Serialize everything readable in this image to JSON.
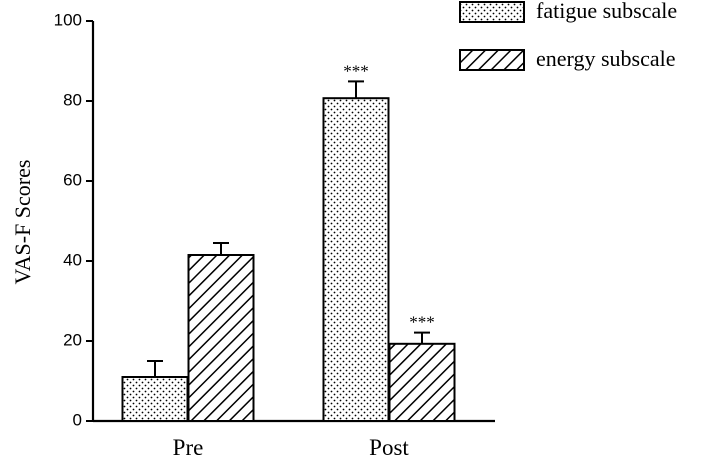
{
  "chart_data": {
    "type": "bar",
    "title": "",
    "xlabel": "",
    "ylabel": "VAS-F  Scores",
    "categories": [
      "Pre",
      "Post"
    ],
    "ylim": [
      0,
      100
    ],
    "yticks": [
      "0",
      "20",
      "40",
      "60",
      "80",
      "100"
    ],
    "series": [
      {
        "name": "fatigue subscale",
        "pattern": "dots",
        "values": [
          11,
          80.7
        ],
        "errors": [
          4,
          4.2
        ],
        "annotations": [
          "",
          "***"
        ]
      },
      {
        "name": "energy subscale",
        "pattern": "diagonal-hatch",
        "values": [
          41.5,
          19.3
        ],
        "errors": [
          3,
          2.8
        ],
        "annotations": [
          "",
          "***"
        ]
      }
    ],
    "legend_position": "top-right",
    "grid": false,
    "colors": {
      "stroke": "#000000",
      "fill": "#ffffff"
    }
  }
}
